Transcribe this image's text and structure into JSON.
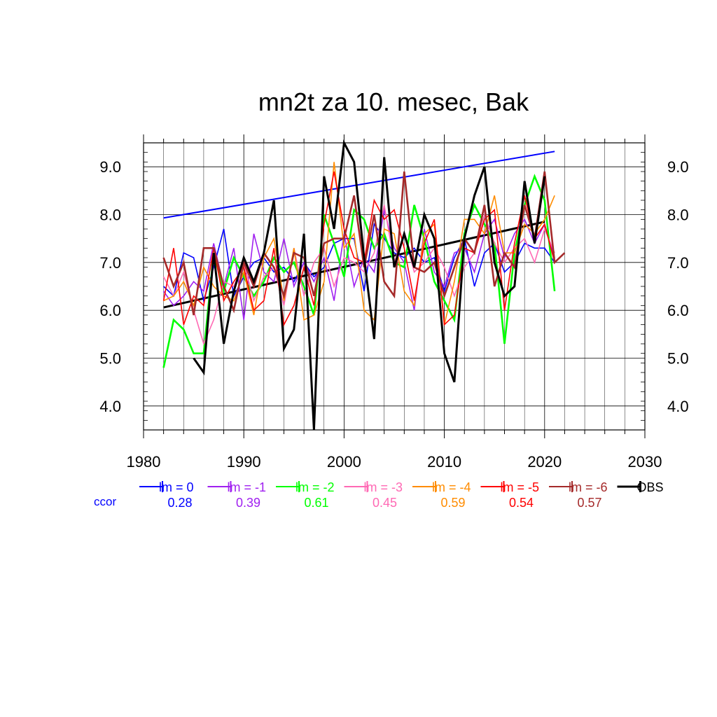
{
  "chart_data": {
    "type": "line",
    "title": "mn2t za 10. mesec, Bak",
    "xlabel": "",
    "ylabel": "",
    "xlim": [
      1980,
      2030
    ],
    "ylim": [
      3.5,
      9.5
    ],
    "xticks": [
      1980,
      1990,
      2000,
      2010,
      2020,
      2030
    ],
    "xtick_labels": [
      "1980",
      "1990",
      "2000",
      "2010",
      "2020",
      "2030"
    ],
    "yticks": [
      4.0,
      5.0,
      6.0,
      7.0,
      8.0,
      9.0
    ],
    "ytick_labels": [
      "4.0",
      "5.0",
      "6.0",
      "7.0",
      "8.0",
      "9.0"
    ],
    "grid": true,
    "legend_position": "bottom",
    "ccor_label": "ccor",
    "series": [
      {
        "name": "lm = 0",
        "ccor": "0.28",
        "color": "#0000ff",
        "x": [
          1982,
          1983,
          1984,
          1985,
          1986,
          1987,
          1988,
          1989,
          1990,
          1991,
          1992,
          1993,
          1994,
          1995,
          1996,
          1997,
          1998,
          1999,
          2000,
          2001,
          2002,
          2003,
          2004,
          2005,
          2006,
          2007,
          2008,
          2009,
          2010,
          2011,
          2012,
          2013,
          2014,
          2015,
          2016,
          2017,
          2018,
          2019,
          2020,
          2021
        ],
        "values": [
          6.5,
          6.3,
          7.2,
          7.1,
          6.2,
          6.9,
          7.7,
          6.3,
          6.7,
          7.0,
          7.1,
          6.8,
          6.9,
          6.6,
          7.0,
          6.7,
          6.9,
          7.4,
          7.5,
          7.5,
          6.4,
          7.8,
          7.5,
          7.2,
          7.1,
          7.3,
          7.0,
          7.1,
          6.4,
          7.1,
          7.5,
          6.5,
          7.2,
          7.4,
          6.8,
          7.0,
          7.4,
          7.3,
          7.3,
          7.0
        ]
      },
      {
        "name": "lm = -1",
        "ccor": "0.39",
        "color": "#a020f0",
        "x": [
          1982,
          1983,
          1984,
          1985,
          1986,
          1987,
          1988,
          1989,
          1990,
          1991,
          1992,
          1993,
          1994,
          1995,
          1996,
          1997,
          1998,
          1999,
          2000,
          2001,
          2002,
          2003,
          2004,
          2005,
          2006,
          2007,
          2008,
          2009,
          2010,
          2011,
          2012,
          2013,
          2014,
          2015,
          2016,
          2017,
          2018,
          2019,
          2020,
          2021
        ],
        "values": [
          6.4,
          6.1,
          6.3,
          6.6,
          6.4,
          7.4,
          6.5,
          7.3,
          5.8,
          7.6,
          6.8,
          6.6,
          7.5,
          6.5,
          7.0,
          6.6,
          7.1,
          6.2,
          7.6,
          6.5,
          7.1,
          6.8,
          8.1,
          7.3,
          7.0,
          6.0,
          7.7,
          6.8,
          6.5,
          7.2,
          7.3,
          6.8,
          7.6,
          7.9,
          7.1,
          7.6,
          7.9,
          7.4,
          7.8,
          7.1
        ]
      },
      {
        "name": "lm = -2",
        "ccor": "0.61",
        "color": "#00ff00",
        "x": [
          1982,
          1983,
          1984,
          1985,
          1986,
          1987,
          1988,
          1989,
          1990,
          1991,
          1992,
          1993,
          1994,
          1995,
          1996,
          1997,
          1998,
          1999,
          2000,
          2001,
          2002,
          2003,
          2004,
          2005,
          2006,
          2007,
          2008,
          2009,
          2010,
          2011,
          2012,
          2013,
          2014,
          2015,
          2016,
          2017,
          2018,
          2019,
          2020,
          2021
        ],
        "values": [
          4.8,
          5.8,
          5.6,
          5.1,
          5.1,
          7.2,
          6.4,
          7.1,
          6.7,
          6.3,
          6.6,
          7.1,
          6.8,
          7.0,
          6.5,
          5.9,
          8.0,
          7.4,
          6.7,
          8.1,
          7.9,
          7.3,
          7.6,
          7.0,
          6.9,
          8.2,
          7.5,
          6.6,
          6.2,
          5.8,
          7.6,
          8.2,
          7.8,
          7.4,
          5.3,
          7.2,
          8.2,
          8.8,
          8.3,
          6.4
        ]
      },
      {
        "name": "lm = -3",
        "ccor": "0.45",
        "color": "#ff69b4",
        "x": [
          1982,
          1983,
          1984,
          1985,
          1986,
          1987,
          1988,
          1989,
          1990,
          1991,
          1992,
          1993,
          1994,
          1995,
          1996,
          1997,
          1998,
          1999,
          2000,
          2001,
          2002,
          2003,
          2004,
          2005,
          2006,
          2007,
          2008,
          2009,
          2010,
          2011,
          2012,
          2013,
          2014,
          2015,
          2016,
          2017,
          2018,
          2019,
          2020,
          2021
        ],
        "values": [
          6.7,
          6.3,
          6.8,
          6.0,
          5.3,
          5.8,
          6.6,
          6.5,
          7.0,
          6.2,
          6.7,
          6.9,
          6.1,
          7.3,
          6.3,
          7.0,
          7.3,
          6.5,
          7.1,
          7.0,
          6.8,
          7.2,
          8.2,
          7.0,
          7.6,
          6.8,
          7.0,
          7.3,
          6.9,
          6.3,
          6.9,
          7.2,
          8.0,
          7.4,
          7.0,
          7.3,
          7.5,
          7.0,
          7.7,
          7.2
        ]
      },
      {
        "name": "lm = -4",
        "ccor": "0.59",
        "color": "#ff8c00",
        "x": [
          1982,
          1983,
          1984,
          1985,
          1986,
          1987,
          1988,
          1989,
          1990,
          1991,
          1992,
          1993,
          1994,
          1995,
          1996,
          1997,
          1998,
          1999,
          2000,
          2001,
          2002,
          2003,
          2004,
          2005,
          2006,
          2007,
          2008,
          2009,
          2010,
          2011,
          2012,
          2013,
          2014,
          2015,
          2016,
          2017,
          2018,
          2019,
          2020,
          2021
        ],
        "values": [
          6.2,
          6.3,
          6.6,
          6.1,
          6.9,
          6.5,
          6.3,
          6.2,
          6.8,
          5.9,
          7.1,
          7.5,
          6.2,
          7.3,
          5.8,
          5.9,
          6.6,
          9.1,
          7.3,
          7.6,
          6.0,
          5.8,
          7.7,
          7.6,
          6.4,
          6.1,
          7.6,
          7.8,
          5.7,
          6.6,
          7.9,
          7.9,
          7.6,
          8.4,
          7.2,
          7.2,
          7.8,
          7.6,
          7.9,
          8.4
        ]
      },
      {
        "name": "lm = -5",
        "ccor": "0.54",
        "color": "#ff0000",
        "x": [
          1982,
          1983,
          1984,
          1985,
          1986,
          1987,
          1988,
          1989,
          1990,
          1991,
          1992,
          1993,
          1994,
          1995,
          1996,
          1997,
          1998,
          1999,
          2000,
          2001,
          2002,
          2003,
          2004,
          2005,
          2006,
          2007,
          2008,
          2009,
          2010,
          2011,
          2012,
          2013,
          2014,
          2015,
          2016,
          2017,
          2018,
          2019,
          2020,
          2021
        ],
        "values": [
          6.2,
          7.3,
          5.7,
          6.3,
          6.1,
          7.3,
          6.2,
          6.6,
          6.9,
          6.0,
          6.2,
          7.3,
          5.7,
          6.1,
          6.9,
          6.1,
          7.8,
          8.9,
          7.7,
          7.1,
          7.0,
          8.3,
          7.9,
          8.1,
          7.3,
          6.2,
          7.4,
          7.9,
          5.7,
          5.9,
          7.3,
          7.2,
          7.9,
          8.1,
          6.0,
          7.4,
          8.4,
          7.5,
          7.8,
          7.0
        ]
      },
      {
        "name": "lm = -6",
        "ccor": "0.57",
        "color": "#a52a2a",
        "x": [
          1982,
          1983,
          1984,
          1985,
          1986,
          1987,
          1988,
          1989,
          1990,
          1991,
          1992,
          1993,
          1994,
          1995,
          1996,
          1997,
          1998,
          1999,
          2000,
          2001,
          2002,
          2003,
          2004,
          2005,
          2006,
          2007,
          2008,
          2009,
          2010,
          2011,
          2012,
          2013,
          2014,
          2015,
          2016,
          2017,
          2018,
          2019,
          2020,
          2021,
          2022
        ],
        "values": [
          7.1,
          6.5,
          7.0,
          5.9,
          7.3,
          7.3,
          6.5,
          6.0,
          7.0,
          6.5,
          7.2,
          6.9,
          6.3,
          7.2,
          7.1,
          6.3,
          7.4,
          7.5,
          7.5,
          8.4,
          6.9,
          8.0,
          6.6,
          6.3,
          8.9,
          6.9,
          6.8,
          7.0,
          6.3,
          6.9,
          7.5,
          7.2,
          8.2,
          6.5,
          7.2,
          6.9,
          8.2,
          7.5,
          8.9,
          7.0,
          7.2
        ]
      },
      {
        "name": "OBS",
        "ccor": "",
        "color": "#000000",
        "x": [
          1985,
          1986,
          1987,
          1988,
          1989,
          1990,
          1991,
          1992,
          1993,
          1994,
          1995,
          1996,
          1997,
          1998,
          1999,
          2000,
          2001,
          2002,
          2003,
          2004,
          2005,
          2006,
          2007,
          2008,
          2009,
          2010,
          2011,
          2012,
          2013,
          2014,
          2015,
          2016,
          2017,
          2018,
          2019,
          2020
        ],
        "values": [
          5.0,
          4.7,
          7.2,
          5.3,
          6.4,
          7.1,
          6.6,
          7.2,
          8.3,
          5.2,
          5.6,
          7.6,
          3.5,
          8.8,
          7.7,
          9.5,
          9.1,
          7.1,
          5.4,
          9.2,
          6.9,
          7.6,
          6.9,
          8.0,
          7.5,
          5.1,
          4.5,
          7.5,
          8.4,
          9.0,
          7.0,
          6.3,
          6.5,
          8.7,
          7.4,
          8.8
        ]
      }
    ],
    "trend_lines": [
      {
        "series": "lm = 0",
        "color": "#0000ff",
        "x": [
          1982,
          2021
        ],
        "values": [
          7.93,
          9.32
        ]
      },
      {
        "series": "OBS",
        "color": "#000000",
        "x": [
          1982,
          2020
        ],
        "values": [
          6.06,
          7.85
        ]
      }
    ]
  }
}
